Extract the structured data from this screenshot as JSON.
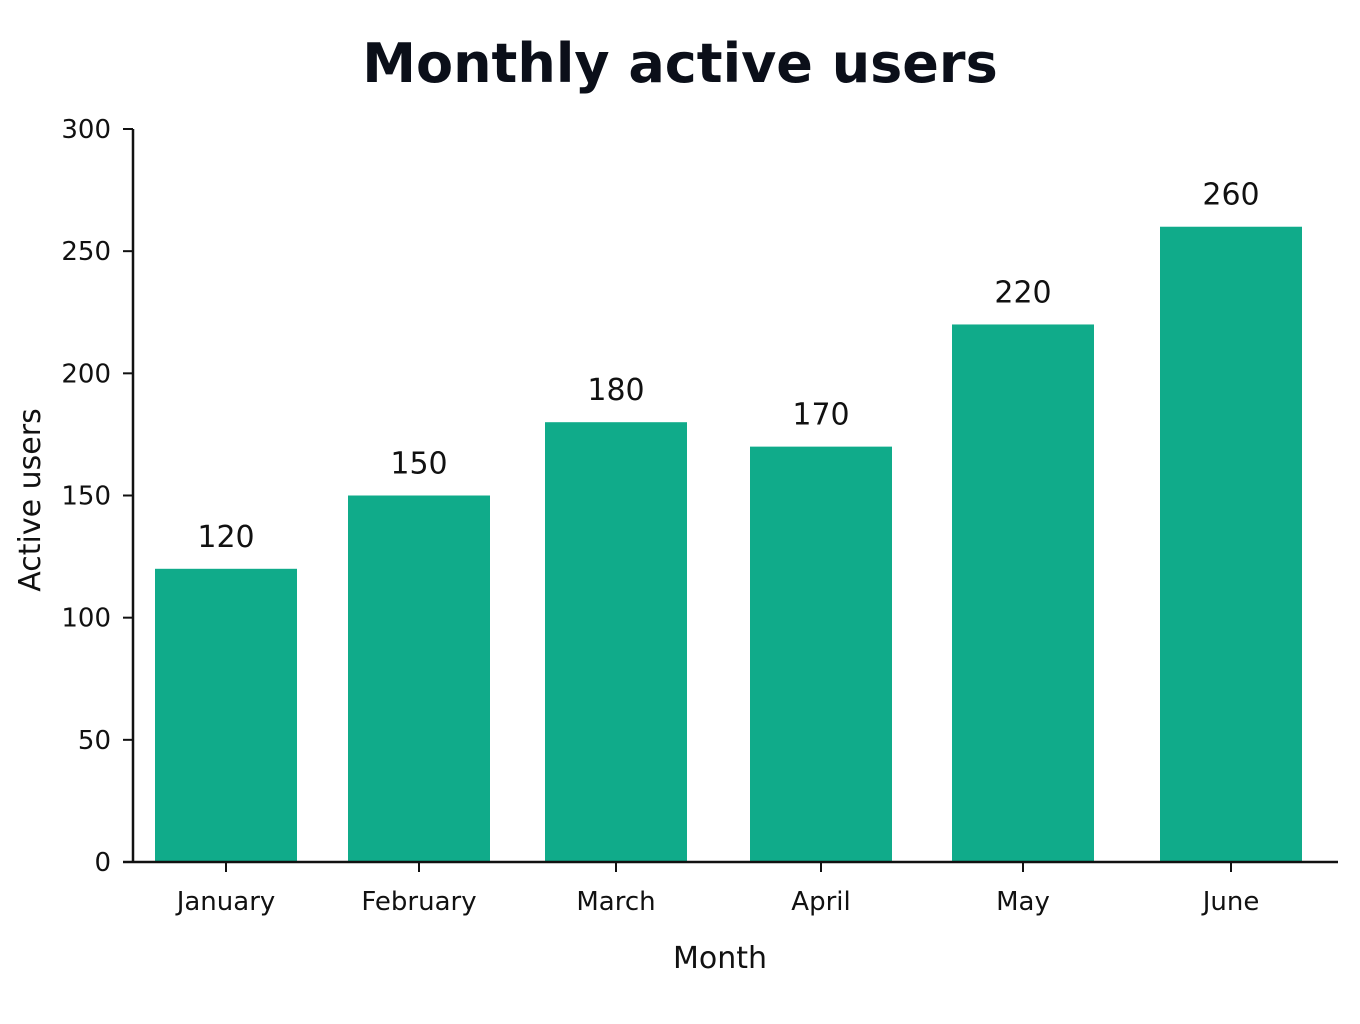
{
  "chart_data": {
    "type": "bar",
    "title": "Monthly active users",
    "xlabel": "Month",
    "ylabel": "Active users",
    "categories": [
      "January",
      "February",
      "March",
      "April",
      "May",
      "June"
    ],
    "values": [
      120,
      150,
      180,
      170,
      220,
      260
    ],
    "data_labels": [
      "120",
      "150",
      "180",
      "170",
      "220",
      "260"
    ],
    "ylim": [
      0,
      300
    ],
    "yticks": [
      0,
      50,
      100,
      150,
      200,
      250,
      300
    ],
    "ytick_labels": [
      "0",
      "50",
      "100",
      "150",
      "200",
      "250",
      "300"
    ],
    "grid": false,
    "legend": "none",
    "bar_color": "#10ab8a"
  }
}
